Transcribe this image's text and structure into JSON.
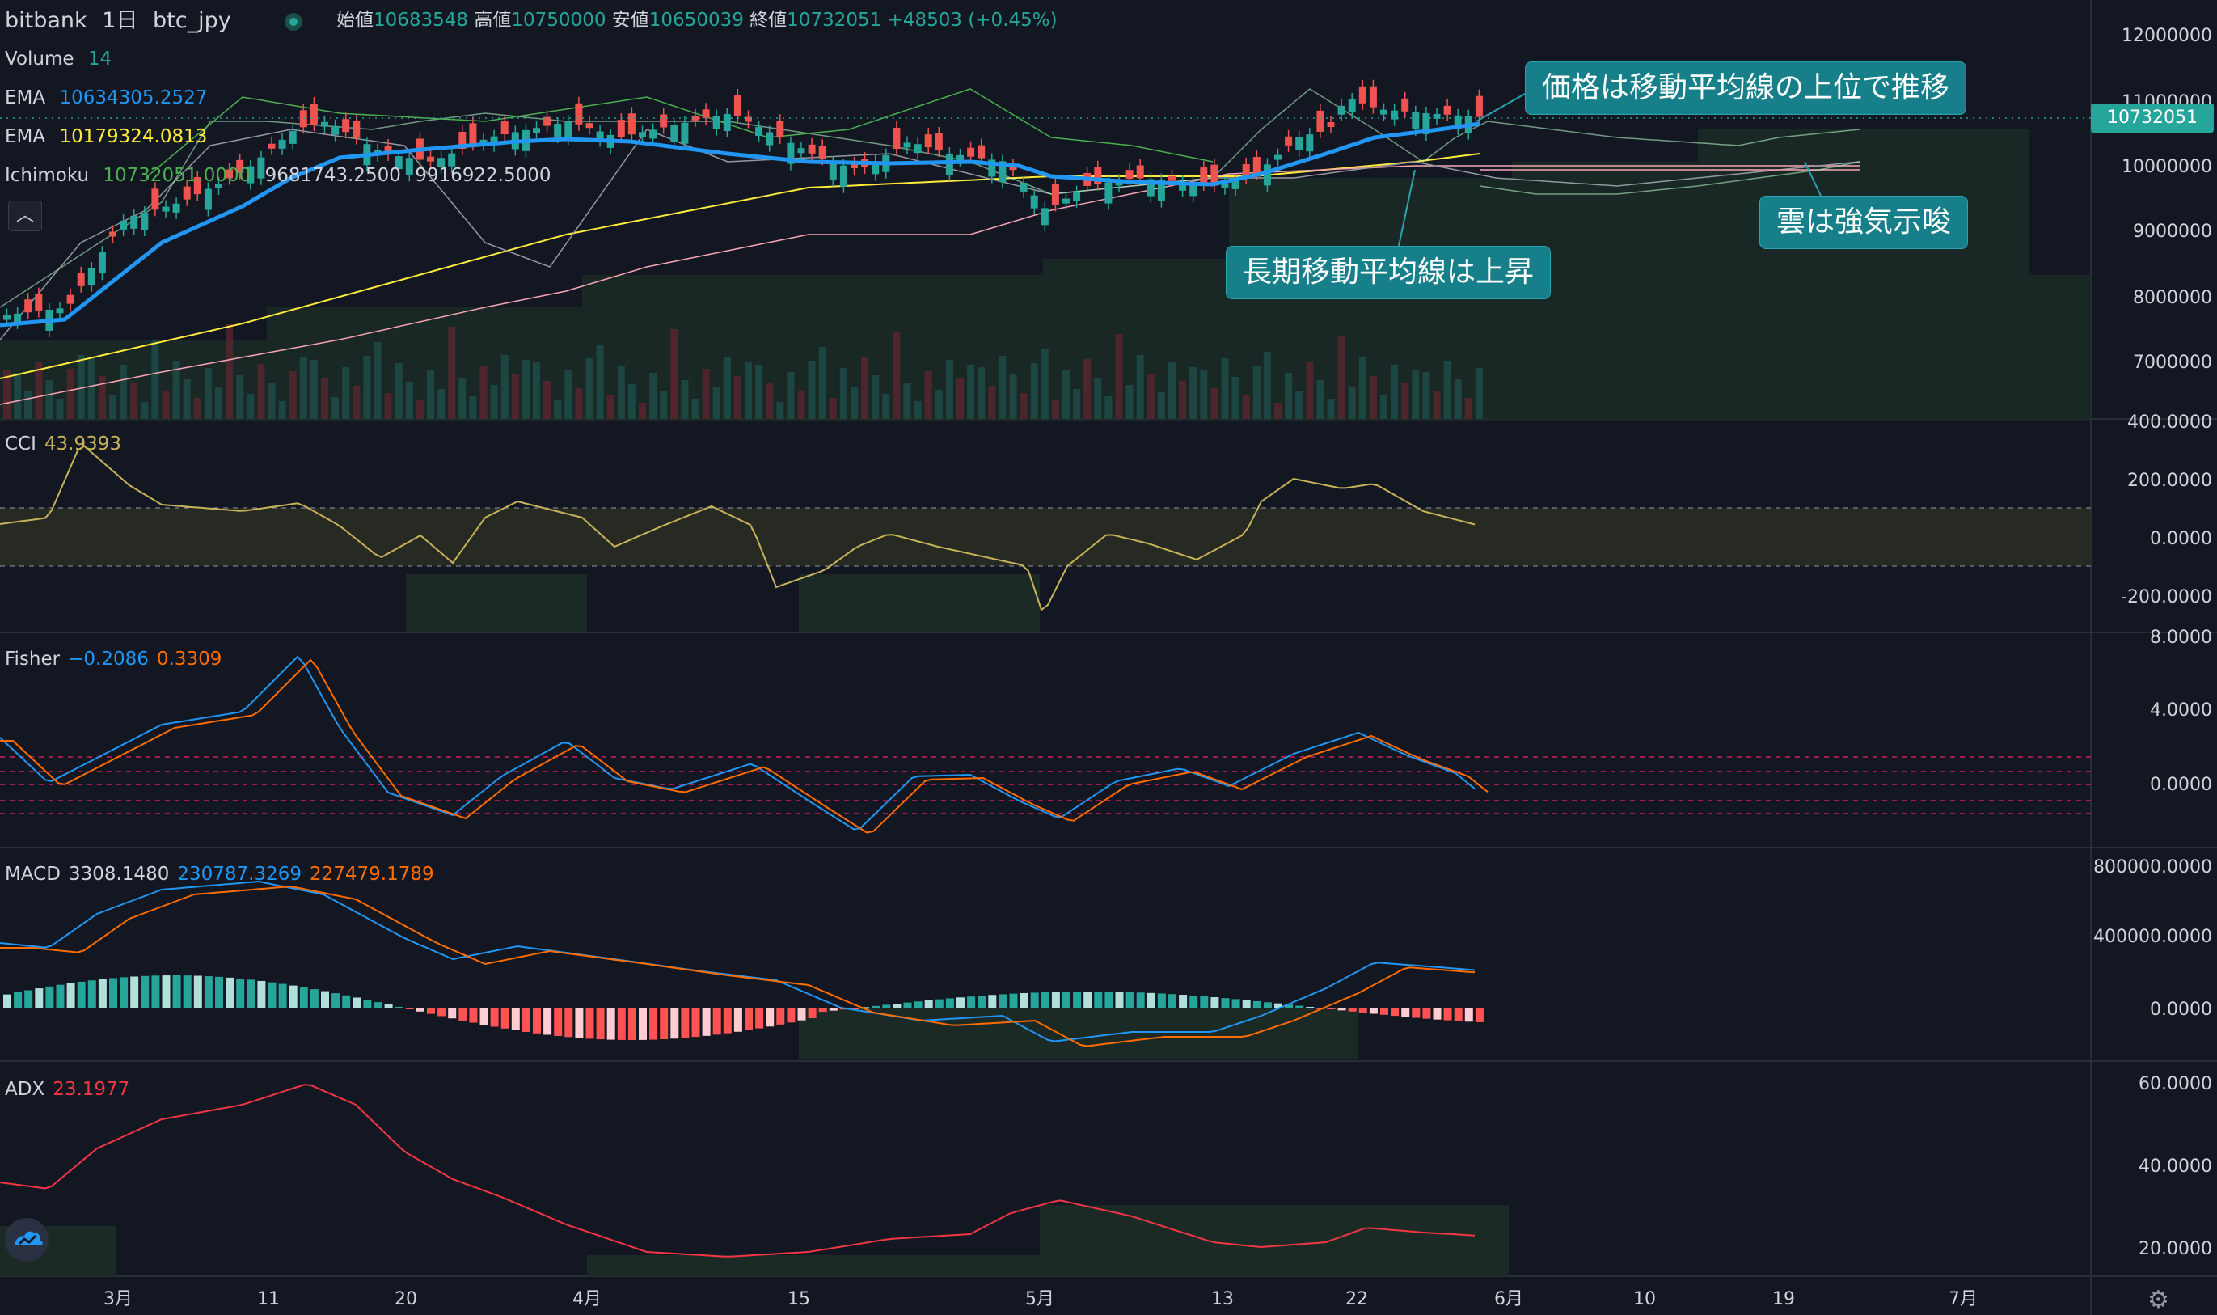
{
  "header": {
    "exchange": "bitbank",
    "interval": "1日",
    "symbol": "btc_jpy",
    "open_label": "始値",
    "open": "10683548",
    "high_label": "高値",
    "high": "10750000",
    "low_label": "安値",
    "low": "10650039",
    "close_label": "終値",
    "close": "10732051",
    "change": "+48503 (+0.45%)"
  },
  "legend": {
    "volume_label": "Volume",
    "volume_value": "14",
    "ema1_label": "EMA",
    "ema1_value": "10634305.2527",
    "ema2_label": "EMA",
    "ema2_value": "10179324.0813",
    "ichimoku_label": "Ichimoku",
    "ichimoku_v1": "10732051.0000",
    "ichimoku_v2": "9681743.2500",
    "ichimoku_v3": "9916922.5000",
    "collapse_icon": "chevron-up-icon"
  },
  "price_axis": {
    "ticks": [
      "12000000",
      "11000000",
      "10000000",
      "9000000",
      "8000000",
      "7000000"
    ],
    "last_price": "10732051"
  },
  "cci": {
    "label": "CCI",
    "value": "43.9393",
    "ticks": [
      "400.0000",
      "200.0000",
      "0.0000",
      "-200.0000"
    ]
  },
  "fisher": {
    "label": "Fisher",
    "value1": "−0.2086",
    "value2": "0.3309",
    "ticks": [
      "8.0000",
      "4.0000",
      "0.0000"
    ]
  },
  "macd": {
    "label": "MACD",
    "value1": "3308.1480",
    "value2": "230787.3269",
    "value3": "227479.1789",
    "ticks": [
      "800000.0000",
      "400000.0000",
      "0.0000"
    ]
  },
  "adx": {
    "label": "ADX",
    "value": "23.1977",
    "ticks": [
      "60.0000",
      "40.0000",
      "20.0000"
    ]
  },
  "time_axis": {
    "ticks": [
      "3月",
      "11",
      "20",
      "4月",
      "15",
      "5月",
      "13",
      "22",
      "6月",
      "10",
      "19",
      "7月"
    ]
  },
  "annotations": {
    "callout1": "価格は移動平均線の上位で推移",
    "callout2": "雲は強気示唆",
    "callout3": "長期移動平均線は上昇"
  },
  "colors": {
    "background": "#131722",
    "up": "#26a69a",
    "down": "#ef5350",
    "ema_fast": "#2196f3",
    "ema_slow": "#ffeb3b",
    "cci": "#c7b35a",
    "fisher1": "#2196f3",
    "fisher2": "#ff6d00",
    "adx": "#f23645",
    "callout": "#167f8a"
  },
  "icons": {
    "logo": "tradingview-logo-icon",
    "settings": "gear-icon"
  }
}
